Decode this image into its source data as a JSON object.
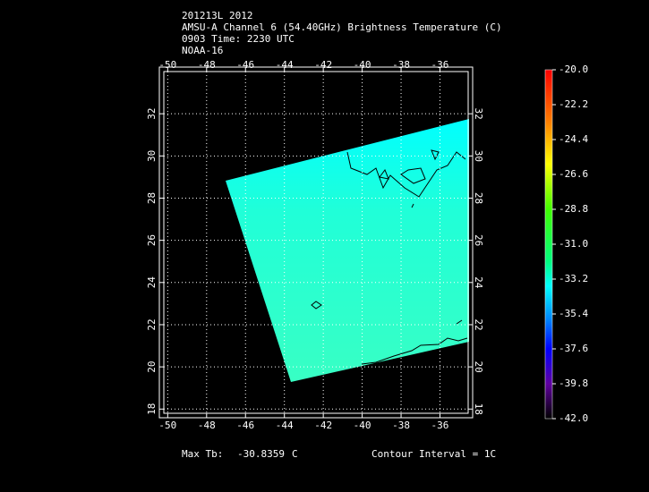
{
  "header": {
    "lines": [
      "201213L 2012",
      "AMSU-A Channel 6 (54.40GHz) Brightness Temperature (C)",
      "0903 Time: 2230 UTC",
      "NOAA-16"
    ]
  },
  "map": {
    "xlim": [
      -50.2,
      -34.55
    ],
    "ylim": [
      17.8,
      34.0
    ],
    "xticks": [
      -50,
      -48,
      -46,
      -44,
      -42,
      -40,
      -38,
      -36
    ],
    "yticks": [
      18,
      20,
      22,
      24,
      26,
      28,
      30,
      32
    ]
  },
  "colorbar": {
    "lim": [
      -42,
      -20
    ],
    "ticks": [
      {
        "value": -20,
        "label": "-20.0"
      },
      -22.2,
      -24.4,
      -26.6,
      -28.8,
      {
        "value": -31,
        "label": "-31.0"
      },
      -33.2,
      -35.4,
      -37.6,
      -39.8,
      {
        "value": -42,
        "label": "-42.0"
      }
    ]
  },
  "footer": {
    "max_label": "Max Tb:",
    "max_value": -30.8359,
    "max_unit": "C",
    "contour": "Contour Interval = 1C"
  }
}
